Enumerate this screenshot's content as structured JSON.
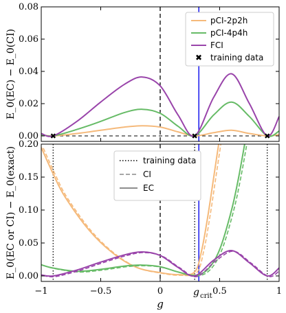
{
  "chart_data": [
    {
      "type": "line",
      "panel": "top",
      "ylabel": "E_0(EC) − E_0(CI)",
      "xlim": [
        -1,
        1
      ],
      "ylim": [
        0,
        0.08
      ],
      "yticks": [
        "0.00",
        "0.02",
        "0.04",
        "0.06",
        "0.08"
      ],
      "grid": false,
      "legend_position": "upper-right",
      "x_dashed_vline": 0,
      "x_blue_vline": 0.325,
      "series": [
        {
          "name": "pCI-2p2h",
          "color": "#f5b97a",
          "x": [
            -1,
            -0.9,
            -0.7,
            -0.5,
            -0.3,
            -0.15,
            0,
            0.15,
            0.29,
            0.45,
            0.6,
            0.75,
            0.9,
            1
          ],
          "y": [
            0.0006,
            0,
            0.0015,
            0.0035,
            0.0055,
            0.0063,
            0.0055,
            0.0025,
            0,
            0.002,
            0.0035,
            0.0015,
            0,
            0.0008
          ]
        },
        {
          "name": "pCI-4p4h",
          "color": "#66bb66",
          "x": [
            -1,
            -0.9,
            -0.7,
            -0.5,
            -0.3,
            -0.15,
            0,
            0.15,
            0.29,
            0.45,
            0.6,
            0.75,
            0.9,
            1
          ],
          "y": [
            0.0008,
            0,
            0.004,
            0.009,
            0.0145,
            0.0165,
            0.014,
            0.006,
            0,
            0.013,
            0.021,
            0.012,
            0,
            0.003
          ]
        },
        {
          "name": "FCI",
          "color": "#9944aa",
          "x": [
            -1,
            -0.9,
            -0.7,
            -0.5,
            -0.3,
            -0.15,
            0,
            0.15,
            0.29,
            0.45,
            0.6,
            0.75,
            0.9,
            1
          ],
          "y": [
            0.0015,
            0,
            0.009,
            0.021,
            0.032,
            0.0365,
            0.031,
            0.013,
            0,
            0.024,
            0.0385,
            0.02,
            0,
            0.012
          ]
        }
      ],
      "training_data": {
        "label": "training data",
        "color": "#aa1111",
        "x": [
          -0.9,
          0.29,
          0.9
        ],
        "y": [
          0,
          0,
          0
        ]
      }
    },
    {
      "type": "line",
      "panel": "bottom",
      "ylabel": "E_0(EC or CI) − E_0(exact)",
      "xlabel": "g",
      "xlim": [
        -1,
        1
      ],
      "ylim": [
        0,
        0.2
      ],
      "xticks": [
        "−1",
        "−0.5",
        "0",
        "0.5",
        "1"
      ],
      "yticks": [
        "0.00",
        "0.05",
        "0.10",
        "0.15",
        "0.20"
      ],
      "g_crit_label": "g",
      "g_crit_subscript": "crit",
      "grid": false,
      "legend_position": "upper-center",
      "legend": [
        {
          "label": "training data",
          "style": "dotted"
        },
        {
          "label": "CI",
          "style": "dashed"
        },
        {
          "label": "EC",
          "style": "solid"
        }
      ],
      "training_vlines": [
        -0.9,
        0.29,
        0.9
      ],
      "x_dashed_vline": 0,
      "x_blue_vline": 0.325,
      "series": [
        {
          "name": "pCI-2p2h EC",
          "color": "#f5b97a",
          "x": [
            -1,
            -0.9,
            -0.8,
            -0.6,
            -0.4,
            -0.2,
            0,
            0.15,
            0.29,
            0.35,
            0.4,
            0.45,
            0.5
          ],
          "y": [
            0.195,
            0.155,
            0.12,
            0.07,
            0.035,
            0.013,
            0.005,
            0.002,
            0.006,
            0.04,
            0.09,
            0.15,
            0.21
          ]
        },
        {
          "name": "pCI-4p4h EC",
          "color": "#66bb66",
          "x": [
            -1,
            -0.9,
            -0.7,
            -0.5,
            -0.3,
            -0.15,
            0,
            0.15,
            0.29,
            0.4,
            0.5,
            0.6,
            0.66,
            0.72
          ],
          "y": [
            0.017,
            0.012,
            0.007,
            0.01,
            0.015,
            0.0165,
            0.014,
            0.006,
            0.001,
            0.01,
            0.04,
            0.1,
            0.15,
            0.21
          ]
        },
        {
          "name": "FCI EC",
          "color": "#9944aa",
          "x": [
            -1,
            -0.9,
            -0.7,
            -0.5,
            -0.3,
            -0.15,
            0,
            0.15,
            0.29,
            0.45,
            0.6,
            0.75,
            0.9,
            1
          ],
          "y": [
            0.0015,
            0,
            0.009,
            0.021,
            0.032,
            0.0365,
            0.031,
            0.013,
            0,
            0.024,
            0.0385,
            0.02,
            0,
            0.012
          ]
        }
      ]
    }
  ]
}
